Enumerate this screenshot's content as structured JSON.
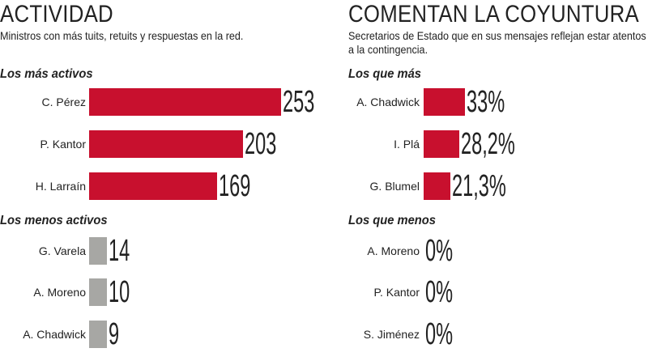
{
  "chart_data": [
    {
      "type": "bar",
      "title": "ACTIVIDAD",
      "subtitle": "Ministros con más tuits, retuits y respuestas en la red.",
      "groups": [
        {
          "name": "Los más activos",
          "color": "#c8102e",
          "categories": [
            "C. Pérez",
            "P. Kantor",
            "H. Larraín"
          ],
          "values": [
            253,
            203,
            169
          ],
          "labels": [
            "253",
            "203",
            "169"
          ]
        },
        {
          "name": "Los menos activos",
          "color": "#a7a7a4",
          "categories": [
            "G. Varela",
            "A. Moreno",
            "A. Chadwick"
          ],
          "values": [
            14,
            10,
            9
          ],
          "labels": [
            "14",
            "10",
            "9"
          ]
        }
      ]
    },
    {
      "type": "bar",
      "title": "COMENTAN LA COYUNTURA",
      "subtitle": "Secretarios de Estado que en sus mensajes reflejan estar atentos a la contingencia.",
      "groups": [
        {
          "name": "Los que más",
          "color": "#c8102e",
          "categories": [
            "A. Chadwick",
            "I. Plá",
            "G. Blumel"
          ],
          "values": [
            33,
            28.2,
            21.3
          ],
          "labels": [
            "33%",
            "28,2%",
            "21,3%"
          ]
        },
        {
          "name": "Los que menos",
          "color": "#a7a7a4",
          "categories": [
            "A. Moreno",
            "P. Kantor",
            "S. Jiménez"
          ],
          "values": [
            0,
            0,
            0
          ],
          "labels": [
            "0%",
            "0%",
            "0%"
          ]
        }
      ]
    }
  ]
}
